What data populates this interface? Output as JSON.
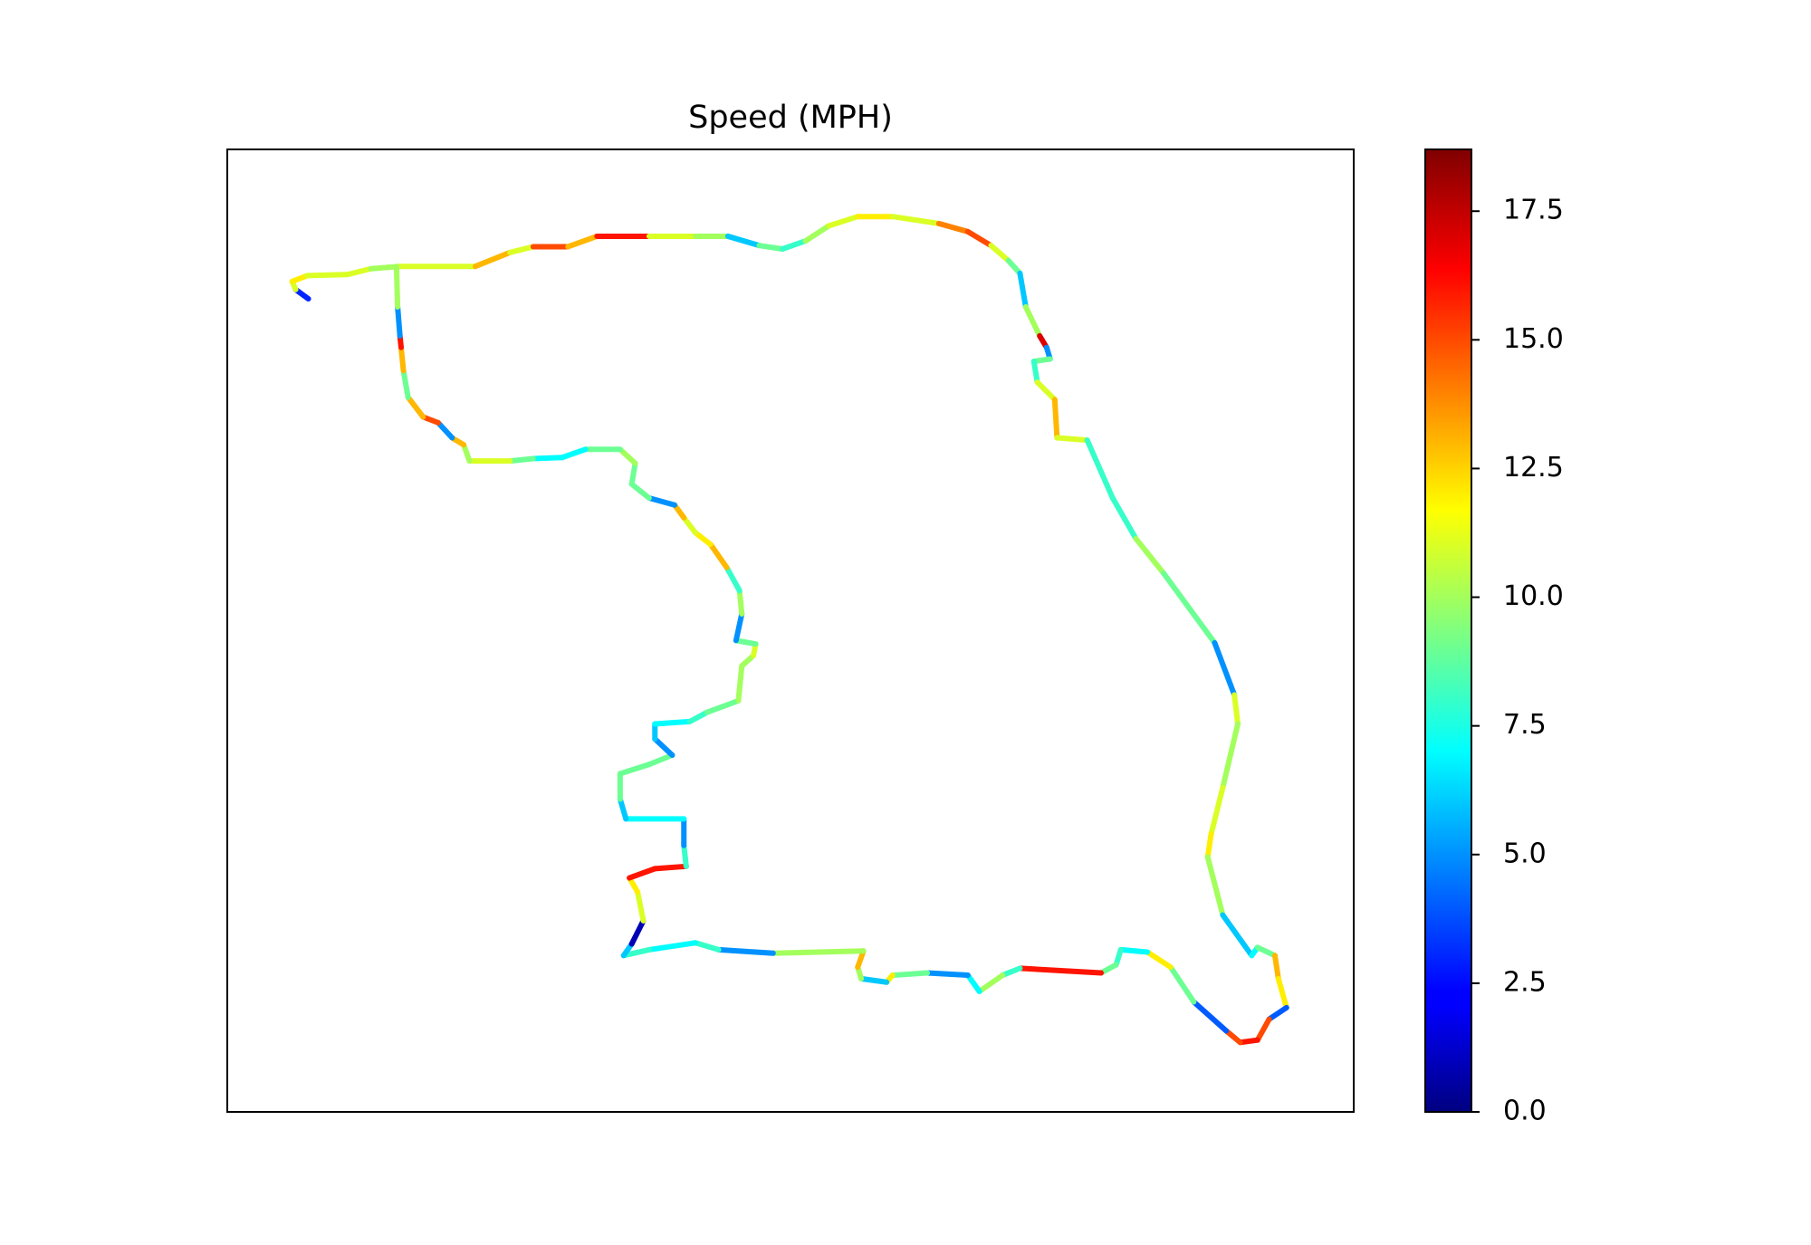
{
  "chart_data": {
    "type": "scatter",
    "title": "Speed (MPH)",
    "x": [
      70,
      59,
      56,
      69,
      104,
      124,
      149,
      214,
      244,
      264,
      294,
      319,
      364,
      404,
      432,
      459,
      479,
      499,
      519,
      544,
      574,
      614,
      639,
      659,
      674,
      684,
      689,
      701,
      707,
      710,
      696,
      699,
      714,
      716,
      742,
      764,
      784,
      808,
      852,
      869,
      872,
      859,
      849,
      846,
      859,
      884,
      889,
      904,
      907,
      914,
      899,
      889,
      874,
      862,
      834,
      814,
      794,
      771,
      767,
      754,
      684,
      669,
      649,
      639,
      604,
      574,
      569,
      547,
      544,
      549,
      471,
      424,
      404,
      364,
      342,
      349,
      359,
      354,
      347,
      369,
      396,
      394,
      394,
      344,
      339,
      339,
      364,
      384,
      369,
      369,
      399,
      414,
      441,
      444,
      454,
      456,
      439,
      444,
      442,
      431,
      417,
      404,
      394,
      386,
      364,
      349,
      352,
      339,
      309,
      289,
      264,
      244,
      209,
      204,
      194,
      182,
      169,
      156,
      152,
      150,
      149,
      147,
      146
    ],
    "y": [
      702,
      710,
      717,
      722,
      723,
      728,
      730,
      730,
      742,
      747,
      747,
      756,
      756,
      756,
      756,
      748,
      745,
      752,
      765,
      773,
      773,
      767,
      760,
      748,
      735,
      724,
      695,
      670,
      660,
      650,
      648,
      630,
      615,
      582,
      580,
      530,
      495,
      465,
      405,
      360,
      335,
      280,
      240,
      220,
      170,
      135,
      142,
      135,
      115,
      90,
      80,
      62,
      60,
      70,
      95,
      125,
      138,
      140,
      127,
      120,
      124,
      118,
      104,
      118,
      120,
      118,
      112,
      115,
      125,
      139,
      137,
      140,
      146,
      140,
      135,
      145,
      165,
      190,
      202,
      210,
      212,
      230,
      253,
      253,
      270,
      292,
      300,
      308,
      322,
      335,
      337,
      345,
      355,
      385,
      394,
      404,
      407,
      430,
      450,
      470,
      490,
      500,
      513,
      524,
      530,
      542,
      560,
      572,
      572,
      565,
      564,
      562,
      562,
      576,
      582,
      595,
      600,
      617,
      640,
      660,
      670,
      695,
      730
    ],
    "speed": [
      3,
      11,
      12,
      11,
      11,
      10,
      11,
      13,
      11,
      15,
      13,
      16,
      11,
      10,
      6,
      9,
      8,
      10,
      11,
      12,
      11,
      14,
      15,
      11,
      9,
      6,
      10,
      17,
      5,
      9,
      8,
      11,
      13,
      11,
      8,
      8,
      10,
      9,
      5,
      11,
      10,
      11,
      12,
      10,
      6,
      7,
      9,
      13,
      12,
      4,
      15,
      16,
      15,
      4,
      9,
      12,
      7,
      8,
      9,
      16,
      8,
      10,
      7,
      5,
      9,
      12,
      6,
      10,
      13,
      10,
      5,
      8,
      7,
      8,
      6,
      1,
      11,
      12,
      16,
      16,
      8,
      5,
      7,
      6,
      9,
      9,
      9,
      5,
      6,
      7,
      8,
      9,
      10,
      10,
      11,
      9,
      5,
      10,
      8,
      13,
      12,
      11,
      13,
      5,
      9,
      9,
      10,
      9,
      7,
      7,
      9,
      11,
      10,
      13,
      5,
      15,
      13,
      9,
      13,
      16,
      5,
      10,
      11
    ],
    "xlim": [
      0,
      972
    ],
    "ylim": [
      0,
      831
    ],
    "colormap": "jet",
    "clim": [
      0,
      18.7
    ],
    "cticks": [
      {
        "value": 0,
        "label": "0.0"
      },
      2.5,
      {
        "value": 5,
        "label": "5.0"
      },
      7.5,
      {
        "value": 10,
        "label": "10.0"
      },
      12.5,
      {
        "value": 15,
        "label": "15.0"
      },
      17.5
    ]
  }
}
